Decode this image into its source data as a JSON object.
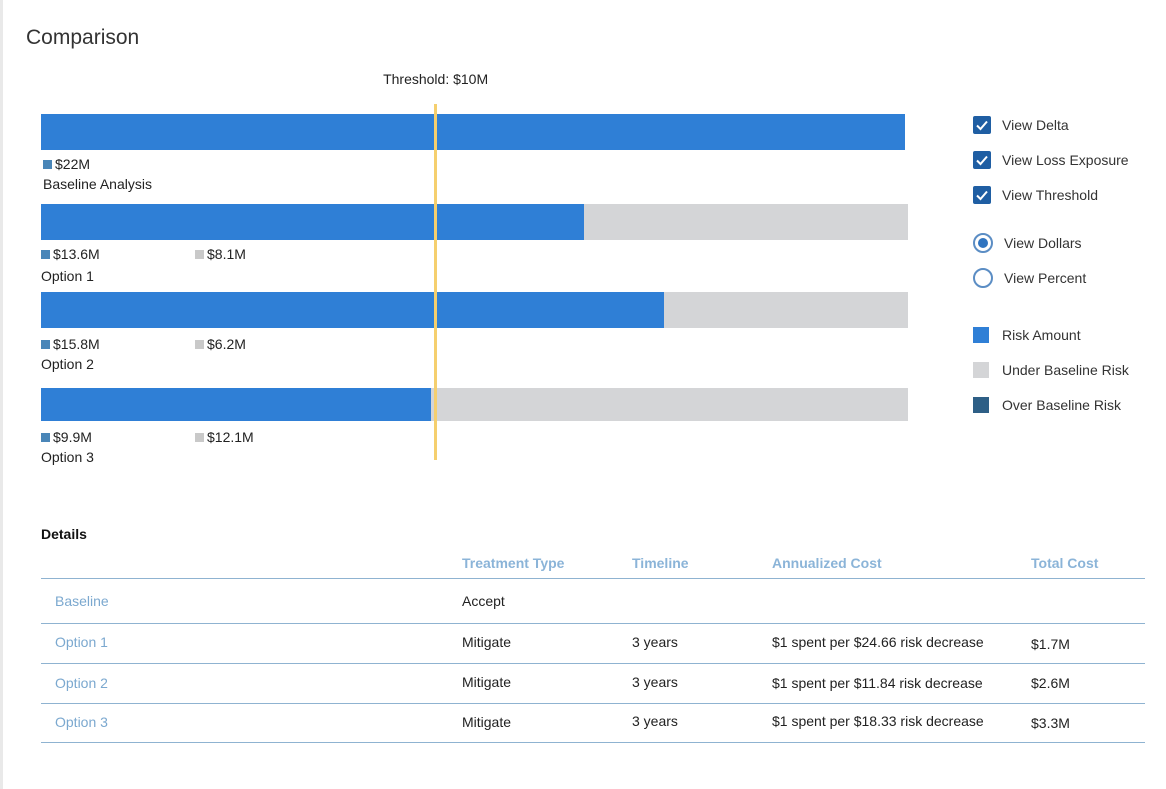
{
  "page": {
    "title": "Comparison"
  },
  "chart_data": {
    "type": "bar",
    "orientation": "horizontal",
    "stacked": true,
    "unit": "$M",
    "xlim": [
      0,
      22
    ],
    "threshold": {
      "value": 10,
      "label": "Threshold: $10M"
    },
    "categories": [
      "Baseline Analysis",
      "Option 1",
      "Option 2",
      "Option 3"
    ],
    "series": [
      {
        "name": "Risk Amount",
        "color": "#2f7fd6",
        "values": [
          22,
          13.6,
          15.8,
          9.9
        ],
        "labels": [
          "$22M",
          "$13.6M",
          "$15.8M",
          "$9.9M"
        ]
      },
      {
        "name": "Under Baseline Risk",
        "color": "#d4d5d7",
        "values": [
          0,
          8.1,
          6.2,
          12.1
        ],
        "labels": [
          "",
          "$8.1M",
          "$6.2M",
          "$12.1M"
        ]
      }
    ]
  },
  "controls": {
    "view_delta": {
      "label": "View Delta",
      "checked": true
    },
    "view_loss_exposure": {
      "label": "View Loss Exposure",
      "checked": true
    },
    "view_threshold": {
      "label": "View Threshold",
      "checked": true
    },
    "view_dollars": {
      "label": "View Dollars",
      "selected": true
    },
    "view_percent": {
      "label": "View Percent",
      "selected": false
    }
  },
  "legend": [
    {
      "label": "Risk Amount",
      "color": "#2f7fd6"
    },
    {
      "label": "Under Baseline Risk",
      "color": "#d4d5d7"
    },
    {
      "label": "Over Baseline Risk",
      "color": "#2e5f86"
    }
  ],
  "details": {
    "title": "Details",
    "columns": [
      "",
      "Treatment Type",
      "Timeline",
      "Annualized Cost",
      "Total Cost"
    ],
    "rows": [
      {
        "name": "Baseline",
        "treatment": "Accept",
        "timeline": "",
        "annualized": "",
        "total": ""
      },
      {
        "name": "Option 1",
        "treatment": "Mitigate",
        "timeline": "3 years",
        "annualized": "$1 spent per $24.66 risk decrease",
        "total": "$1.7M"
      },
      {
        "name": "Option 2",
        "treatment": "Mitigate",
        "timeline": "3 years",
        "annualized": "$1 spent per $11.84 risk decrease",
        "total": "$2.6M"
      },
      {
        "name": "Option 3",
        "treatment": "Mitigate",
        "timeline": "3 years",
        "annualized": "$1 spent per $18.33 risk decrease",
        "total": "$3.3M"
      }
    ]
  }
}
